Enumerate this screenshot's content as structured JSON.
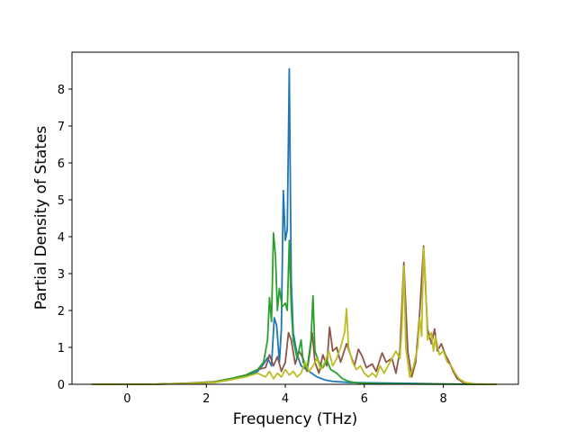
{
  "chart_data": {
    "type": "line",
    "title": "",
    "xlabel": "Frequency (THz)",
    "ylabel": "Partial Density of States",
    "xlim": [
      -1.4,
      9.9
    ],
    "ylim": [
      0,
      9.0
    ],
    "xticks": [
      0,
      2,
      4,
      6,
      8
    ],
    "yticks": [
      0,
      1,
      2,
      3,
      4,
      5,
      6,
      7,
      8
    ],
    "grid": false,
    "legend": "none",
    "series": [
      {
        "color": "#1f77b4",
        "points": [
          [
            -0.9,
            0
          ],
          [
            0.6,
            0
          ],
          [
            1.5,
            0.02
          ],
          [
            2.2,
            0.05
          ],
          [
            2.6,
            0.12
          ],
          [
            3.0,
            0.22
          ],
          [
            3.3,
            0.35
          ],
          [
            3.45,
            0.55
          ],
          [
            3.55,
            0.72
          ],
          [
            3.65,
            0.5
          ],
          [
            3.72,
            1.8
          ],
          [
            3.78,
            1.6
          ],
          [
            3.85,
            0.6
          ],
          [
            3.9,
            1.5
          ],
          [
            3.95,
            5.25
          ],
          [
            4.0,
            3.9
          ],
          [
            4.05,
            4.2
          ],
          [
            4.1,
            8.55
          ],
          [
            4.15,
            2.8
          ],
          [
            4.2,
            1.4
          ],
          [
            4.3,
            0.8
          ],
          [
            4.4,
            0.5
          ],
          [
            4.6,
            0.35
          ],
          [
            4.8,
            0.2
          ],
          [
            5.0,
            0.12
          ],
          [
            5.2,
            0.08
          ],
          [
            5.6,
            0.05
          ],
          [
            6.2,
            0.04
          ],
          [
            6.8,
            0.03
          ],
          [
            7.4,
            0.02
          ],
          [
            8.0,
            0.01
          ],
          [
            8.5,
            0.005
          ],
          [
            9.35,
            0
          ]
        ]
      },
      {
        "color": "#8c564b",
        "points": [
          [
            -0.9,
            0
          ],
          [
            0.6,
            0
          ],
          [
            1.5,
            0.03
          ],
          [
            2.2,
            0.07
          ],
          [
            2.6,
            0.15
          ],
          [
            3.0,
            0.25
          ],
          [
            3.3,
            0.4
          ],
          [
            3.5,
            0.45
          ],
          [
            3.6,
            0.8
          ],
          [
            3.7,
            0.5
          ],
          [
            3.8,
            0.75
          ],
          [
            3.9,
            0.35
          ],
          [
            4.0,
            0.6
          ],
          [
            4.08,
            1.4
          ],
          [
            4.15,
            1.2
          ],
          [
            4.25,
            0.55
          ],
          [
            4.35,
            0.9
          ],
          [
            4.45,
            0.7
          ],
          [
            4.55,
            0.35
          ],
          [
            4.62,
            0.85
          ],
          [
            4.68,
            1.4
          ],
          [
            4.75,
            0.6
          ],
          [
            4.85,
            0.3
          ],
          [
            4.95,
            0.8
          ],
          [
            5.05,
            0.5
          ],
          [
            5.12,
            1.55
          ],
          [
            5.2,
            0.9
          ],
          [
            5.3,
            1.0
          ],
          [
            5.4,
            0.6
          ],
          [
            5.55,
            1.1
          ],
          [
            5.65,
            0.8
          ],
          [
            5.75,
            0.5
          ],
          [
            5.85,
            0.95
          ],
          [
            5.95,
            0.75
          ],
          [
            6.05,
            0.45
          ],
          [
            6.2,
            0.55
          ],
          [
            6.3,
            0.35
          ],
          [
            6.45,
            0.85
          ],
          [
            6.55,
            0.6
          ],
          [
            6.7,
            0.7
          ],
          [
            6.8,
            0.3
          ],
          [
            6.9,
            0.9
          ],
          [
            7.0,
            3.3
          ],
          [
            7.1,
            0.9
          ],
          [
            7.2,
            0.2
          ],
          [
            7.3,
            0.6
          ],
          [
            7.4,
            1.9
          ],
          [
            7.5,
            3.75
          ],
          [
            7.6,
            1.5
          ],
          [
            7.7,
            1.1
          ],
          [
            7.78,
            1.5
          ],
          [
            7.85,
            0.9
          ],
          [
            7.95,
            1.1
          ],
          [
            8.05,
            0.8
          ],
          [
            8.15,
            0.6
          ],
          [
            8.25,
            0.35
          ],
          [
            8.35,
            0.15
          ],
          [
            8.5,
            0.05
          ],
          [
            8.7,
            0.01
          ],
          [
            9.35,
            0
          ]
        ]
      },
      {
        "color": "#2ca02c",
        "points": [
          [
            -0.9,
            0
          ],
          [
            0.6,
            0
          ],
          [
            1.5,
            0.02
          ],
          [
            2.2,
            0.06
          ],
          [
            2.6,
            0.15
          ],
          [
            3.0,
            0.25
          ],
          [
            3.3,
            0.4
          ],
          [
            3.45,
            0.6
          ],
          [
            3.55,
            1.2
          ],
          [
            3.6,
            2.35
          ],
          [
            3.65,
            1.7
          ],
          [
            3.7,
            4.1
          ],
          [
            3.75,
            3.5
          ],
          [
            3.8,
            2.0
          ],
          [
            3.85,
            2.6
          ],
          [
            3.92,
            2.1
          ],
          [
            4.0,
            2.2
          ],
          [
            4.05,
            2.0
          ],
          [
            4.1,
            3.9
          ],
          [
            4.15,
            2.1
          ],
          [
            4.2,
            1.2
          ],
          [
            4.3,
            0.7
          ],
          [
            4.4,
            1.2
          ],
          [
            4.45,
            0.6
          ],
          [
            4.55,
            0.4
          ],
          [
            4.65,
            1.2
          ],
          [
            4.7,
            2.4
          ],
          [
            4.75,
            0.9
          ],
          [
            4.85,
            0.6
          ],
          [
            4.95,
            0.45
          ],
          [
            5.05,
            0.65
          ],
          [
            5.15,
            0.4
          ],
          [
            5.3,
            0.3
          ],
          [
            5.45,
            0.15
          ],
          [
            5.6,
            0.08
          ],
          [
            5.8,
            0.04
          ],
          [
            6.2,
            0.02
          ],
          [
            7.0,
            0.01
          ],
          [
            8.0,
            0.005
          ],
          [
            9.35,
            0
          ]
        ]
      },
      {
        "color": "#bcbd22",
        "points": [
          [
            -0.9,
            0
          ],
          [
            0.6,
            0
          ],
          [
            1.5,
            0.02
          ],
          [
            2.2,
            0.05
          ],
          [
            2.6,
            0.12
          ],
          [
            3.0,
            0.2
          ],
          [
            3.3,
            0.3
          ],
          [
            3.5,
            0.2
          ],
          [
            3.6,
            0.35
          ],
          [
            3.7,
            0.15
          ],
          [
            3.8,
            0.3
          ],
          [
            3.9,
            0.2
          ],
          [
            4.0,
            0.4
          ],
          [
            4.1,
            0.25
          ],
          [
            4.2,
            0.35
          ],
          [
            4.3,
            0.2
          ],
          [
            4.4,
            0.3
          ],
          [
            4.5,
            0.6
          ],
          [
            4.6,
            0.35
          ],
          [
            4.7,
            0.5
          ],
          [
            4.8,
            0.7
          ],
          [
            4.9,
            0.4
          ],
          [
            5.0,
            0.6
          ],
          [
            5.1,
            0.9
          ],
          [
            5.2,
            0.5
          ],
          [
            5.3,
            0.7
          ],
          [
            5.4,
            1.0
          ],
          [
            5.5,
            1.4
          ],
          [
            5.55,
            2.05
          ],
          [
            5.6,
            1.0
          ],
          [
            5.7,
            0.6
          ],
          [
            5.8,
            0.4
          ],
          [
            5.9,
            0.5
          ],
          [
            6.0,
            0.3
          ],
          [
            6.1,
            0.2
          ],
          [
            6.2,
            0.3
          ],
          [
            6.3,
            0.2
          ],
          [
            6.4,
            0.5
          ],
          [
            6.5,
            0.3
          ],
          [
            6.6,
            0.5
          ],
          [
            6.7,
            0.7
          ],
          [
            6.8,
            0.9
          ],
          [
            6.9,
            0.7
          ],
          [
            6.95,
            1.5
          ],
          [
            7.0,
            3.2
          ],
          [
            7.05,
            1.0
          ],
          [
            7.15,
            0.2
          ],
          [
            7.25,
            0.5
          ],
          [
            7.35,
            1.0
          ],
          [
            7.4,
            1.8
          ],
          [
            7.45,
            1.3
          ],
          [
            7.5,
            3.7
          ],
          [
            7.55,
            2.8
          ],
          [
            7.6,
            1.2
          ],
          [
            7.7,
            1.4
          ],
          [
            7.75,
            0.9
          ],
          [
            7.8,
            1.3
          ],
          [
            7.9,
            0.8
          ],
          [
            8.0,
            0.9
          ],
          [
            8.1,
            0.6
          ],
          [
            8.2,
            0.5
          ],
          [
            8.3,
            0.3
          ],
          [
            8.4,
            0.15
          ],
          [
            8.55,
            0.05
          ],
          [
            8.8,
            0.01
          ],
          [
            9.35,
            0
          ]
        ]
      }
    ]
  }
}
